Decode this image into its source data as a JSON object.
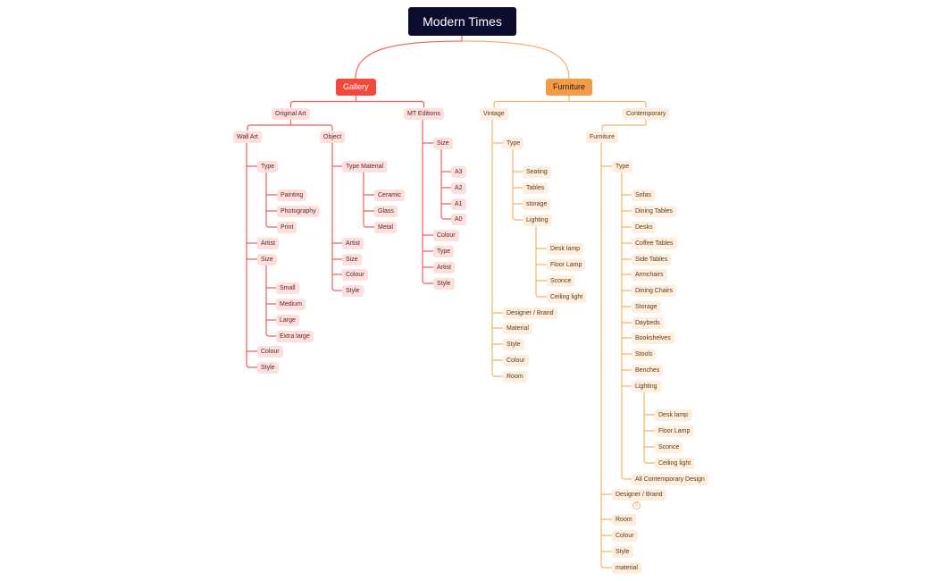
{
  "colors": {
    "root": "#0b0b2e",
    "gallery": "#f5483b",
    "furniture": "#f59a45",
    "gallery_line": "#f0625a",
    "furniture_line": "#f7b26b"
  },
  "map": {
    "root": "Modern Times",
    "collapsed_badge": "6",
    "branches": [
      {
        "label": "Gallery",
        "children": [
          {
            "label": "Original Art",
            "children": [
              {
                "label": "Wall Art",
                "children": [
                  {
                    "label": "Type",
                    "children": [
                      {
                        "label": "Painting"
                      },
                      {
                        "label": "Photography"
                      },
                      {
                        "label": "Print"
                      }
                    ]
                  },
                  {
                    "label": "Artist"
                  },
                  {
                    "label": "Size",
                    "children": [
                      {
                        "label": "Small"
                      },
                      {
                        "label": "Medium"
                      },
                      {
                        "label": "Large"
                      },
                      {
                        "label": "Extra large"
                      }
                    ]
                  },
                  {
                    "label": "Colour"
                  },
                  {
                    "label": "Style"
                  }
                ]
              },
              {
                "label": "Object",
                "children": [
                  {
                    "label": "Type Material",
                    "children": [
                      {
                        "label": "Ceramic"
                      },
                      {
                        "label": "Glass"
                      },
                      {
                        "label": "Metal"
                      }
                    ]
                  },
                  {
                    "label": "Artist"
                  },
                  {
                    "label": "Size"
                  },
                  {
                    "label": "Colour"
                  },
                  {
                    "label": "Style"
                  }
                ]
              }
            ]
          },
          {
            "label": "MT Editions",
            "children": [
              {
                "label": "Size",
                "children": [
                  {
                    "label": "A3"
                  },
                  {
                    "label": "A2"
                  },
                  {
                    "label": "A1"
                  },
                  {
                    "label": "A0"
                  }
                ]
              },
              {
                "label": "Colour"
              },
              {
                "label": "Type"
              },
              {
                "label": "Artist"
              },
              {
                "label": "Style"
              }
            ]
          }
        ]
      },
      {
        "label": "Furniture",
        "children": [
          {
            "label": "Vintage",
            "children": [
              {
                "label": "Type",
                "children": [
                  {
                    "label": "Seating"
                  },
                  {
                    "label": "Tables"
                  },
                  {
                    "label": "storage"
                  },
                  {
                    "label": "Lighting",
                    "children": [
                      {
                        "label": "Desk lamp"
                      },
                      {
                        "label": "Floor Lamp"
                      },
                      {
                        "label": "Sconce"
                      },
                      {
                        "label": "Ceiling light"
                      }
                    ]
                  }
                ]
              },
              {
                "label": "Designer / Brand"
              },
              {
                "label": "Material"
              },
              {
                "label": "Style"
              },
              {
                "label": "Colour"
              },
              {
                "label": "Room"
              }
            ]
          },
          {
            "label": "Contemporary",
            "children": [
              {
                "label": "Furniture",
                "children": [
                  {
                    "label": "Type",
                    "children": [
                      {
                        "label": "Sofas"
                      },
                      {
                        "label": "Dining Tables"
                      },
                      {
                        "label": "Desks"
                      },
                      {
                        "label": "Coffee Tables"
                      },
                      {
                        "label": "Side Tables"
                      },
                      {
                        "label": "Armchairs"
                      },
                      {
                        "label": "Dining Chairs"
                      },
                      {
                        "label": "Storage"
                      },
                      {
                        "label": "Daybeds"
                      },
                      {
                        "label": "Bookshelves"
                      },
                      {
                        "label": "Stools"
                      },
                      {
                        "label": "Benches"
                      },
                      {
                        "label": "Lighting",
                        "children": [
                          {
                            "label": "Desk lamp"
                          },
                          {
                            "label": "Floor Lamp"
                          },
                          {
                            "label": "Sconce"
                          },
                          {
                            "label": "Ceiling light"
                          }
                        ]
                      },
                      {
                        "label": "All Contemporary Design"
                      }
                    ]
                  },
                  {
                    "label": "Designer / Brand"
                  },
                  {
                    "label": "Room"
                  },
                  {
                    "label": "Colour"
                  },
                  {
                    "label": "Style"
                  },
                  {
                    "label": "material"
                  }
                ]
              }
            ]
          }
        ]
      }
    ]
  }
}
